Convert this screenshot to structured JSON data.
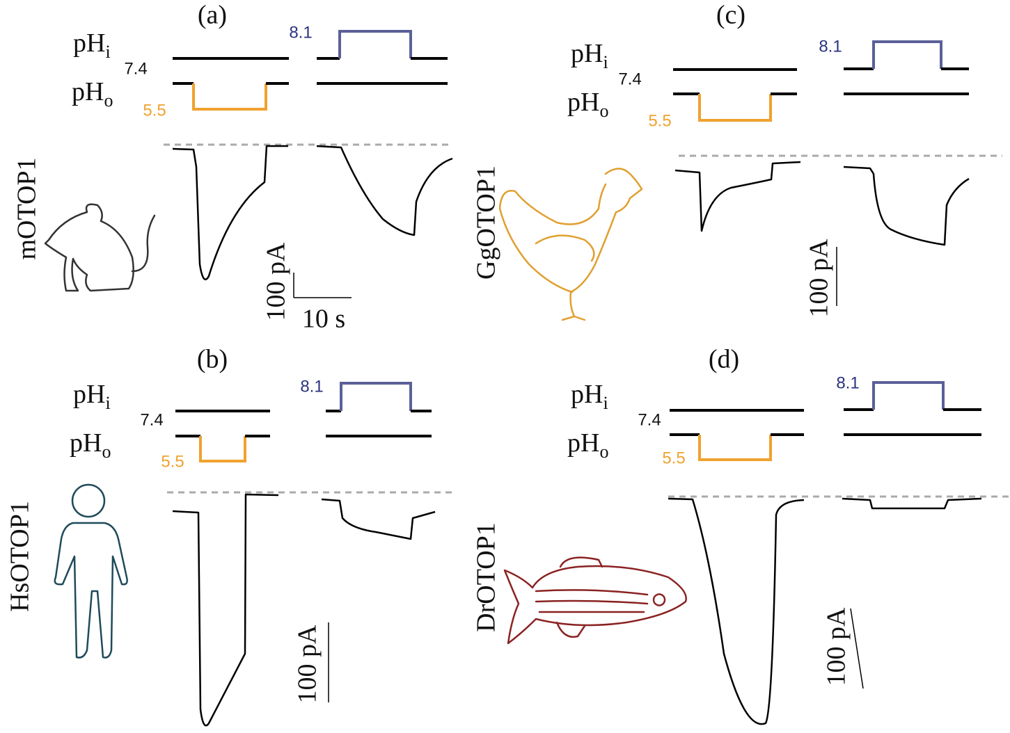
{
  "panels": [
    {
      "label": "(a)",
      "pH_inner": {
        "text": "pH",
        "subscript": "i"
      },
      "pH_outer": {
        "text": "pH",
        "subscript": "o"
      },
      "baseline": "7.4",
      "acid": "5.5",
      "alkaline": "8.1",
      "protein": "mOTOP1",
      "scale_current": "100 pA",
      "scale_time": "10 s"
    },
    {
      "label": "(b)",
      "pH_inner": {
        "text": "pH",
        "subscript": "i"
      },
      "pH_outer": {
        "text": "pH",
        "subscript": "o"
      },
      "baseline": "7.4",
      "acid": "5.5",
      "alkaline": "8.1",
      "protein": "HsOTOP1",
      "scale_current": "100 pA"
    },
    {
      "label": "(c)",
      "pH_inner": {
        "text": "pH",
        "subscript": "i"
      },
      "pH_outer": {
        "text": "pH",
        "subscript": "o"
      },
      "baseline": "7.4",
      "acid": "5.5",
      "alkaline": "8.1",
      "protein": "GgOTOP1",
      "scale_current": "100 pA"
    },
    {
      "label": "(d)",
      "pH_inner": {
        "text": "pH",
        "subscript": "i"
      },
      "pH_outer": {
        "text": "pH",
        "subscript": "o"
      },
      "baseline": "7.4",
      "acid": "5.5",
      "alkaline": "8.1",
      "protein": "DrOTOP1",
      "scale_current": "100 pA"
    }
  ]
}
